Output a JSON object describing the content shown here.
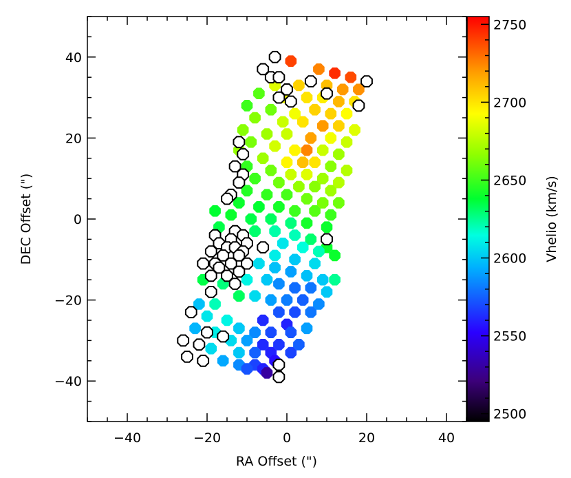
{
  "chart_data": {
    "type": "scatter",
    "xlabel": "RA Offset (\")",
    "ylabel": "DEC Offset (\")",
    "xlim": [
      -50,
      45
    ],
    "ylim": [
      -50,
      50
    ],
    "xticks": [
      "-40",
      "-20",
      "0",
      "20",
      "40"
    ],
    "yticks": [
      "-40",
      "-20",
      "0",
      "20",
      "40"
    ],
    "grid": false,
    "colorbar": {
      "label": "Vhelio (km/s)",
      "min": 2495,
      "max": 2755,
      "ticks": [
        "2500",
        "2550",
        "2600",
        "2650",
        "2700",
        "2750"
      ]
    },
    "filled_points": [
      {
        "x": 1,
        "y": 39,
        "v": 2740
      },
      {
        "x": 8,
        "y": 37,
        "v": 2725
      },
      {
        "x": 12,
        "y": 36,
        "v": 2745
      },
      {
        "x": 16,
        "y": 35,
        "v": 2738
      },
      {
        "x": -3,
        "y": 33,
        "v": 2685
      },
      {
        "x": 3,
        "y": 33,
        "v": 2705
      },
      {
        "x": 10,
        "y": 33,
        "v": 2710
      },
      {
        "x": 14,
        "y": 32,
        "v": 2720
      },
      {
        "x": 18,
        "y": 32,
        "v": 2722
      },
      {
        "x": -7,
        "y": 31,
        "v": 2655
      },
      {
        "x": -1,
        "y": 30,
        "v": 2690
      },
      {
        "x": 5,
        "y": 30,
        "v": 2700
      },
      {
        "x": 9,
        "y": 30,
        "v": 2697
      },
      {
        "x": 13,
        "y": 29,
        "v": 2712
      },
      {
        "x": 17,
        "y": 29,
        "v": 2700
      },
      {
        "x": -10,
        "y": 28,
        "v": 2650
      },
      {
        "x": -4,
        "y": 27,
        "v": 2660
      },
      {
        "x": 2,
        "y": 26,
        "v": 2690
      },
      {
        "x": 7,
        "y": 27,
        "v": 2705
      },
      {
        "x": 11,
        "y": 26,
        "v": 2705
      },
      {
        "x": 15,
        "y": 26,
        "v": 2693
      },
      {
        "x": -8,
        "y": 25,
        "v": 2665
      },
      {
        "x": -1,
        "y": 24,
        "v": 2680
      },
      {
        "x": 4,
        "y": 24,
        "v": 2700
      },
      {
        "x": 9,
        "y": 23,
        "v": 2720
      },
      {
        "x": 13,
        "y": 23,
        "v": 2705
      },
      {
        "x": 17,
        "y": 22,
        "v": 2685
      },
      {
        "x": -11,
        "y": 22,
        "v": 2665
      },
      {
        "x": -5,
        "y": 21,
        "v": 2670
      },
      {
        "x": 0,
        "y": 21,
        "v": 2680
      },
      {
        "x": 6,
        "y": 20,
        "v": 2718
      },
      {
        "x": 11,
        "y": 20,
        "v": 2690
      },
      {
        "x": 15,
        "y": 19,
        "v": 2680
      },
      {
        "x": -9,
        "y": 19,
        "v": 2662
      },
      {
        "x": -3,
        "y": 18,
        "v": 2682
      },
      {
        "x": 2,
        "y": 17,
        "v": 2695
      },
      {
        "x": 5,
        "y": 17,
        "v": 2725
      },
      {
        "x": 9,
        "y": 17,
        "v": 2680
      },
      {
        "x": 13,
        "y": 16,
        "v": 2670
      },
      {
        "x": -12,
        "y": 17,
        "v": 2668
      },
      {
        "x": -6,
        "y": 15,
        "v": 2670
      },
      {
        "x": 0,
        "y": 14,
        "v": 2695
      },
      {
        "x": 4,
        "y": 14,
        "v": 2710
      },
      {
        "x": 7,
        "y": 14,
        "v": 2700
      },
      {
        "x": 11,
        "y": 13,
        "v": 2665
      },
      {
        "x": 15,
        "y": 12,
        "v": 2675
      },
      {
        "x": -10,
        "y": 13,
        "v": 2648
      },
      {
        "x": -4,
        "y": 12,
        "v": 2660
      },
      {
        "x": 1,
        "y": 11,
        "v": 2680
      },
      {
        "x": 5,
        "y": 11,
        "v": 2685
      },
      {
        "x": 9,
        "y": 10,
        "v": 2670
      },
      {
        "x": 13,
        "y": 9,
        "v": 2675
      },
      {
        "x": -8,
        "y": 10,
        "v": 2650
      },
      {
        "x": -2,
        "y": 9,
        "v": 2660
      },
      {
        "x": 3,
        "y": 8,
        "v": 2668
      },
      {
        "x": 7,
        "y": 8,
        "v": 2665
      },
      {
        "x": 11,
        "y": 7,
        "v": 2670
      },
      {
        "x": -10,
        "y": 7,
        "v": 2645
      },
      {
        "x": -5,
        "y": 6,
        "v": 2648
      },
      {
        "x": 0,
        "y": 6,
        "v": 2652
      },
      {
        "x": 5,
        "y": 5,
        "v": 2660
      },
      {
        "x": 9,
        "y": 4,
        "v": 2662
      },
      {
        "x": 13,
        "y": 4,
        "v": 2660
      },
      {
        "x": -12,
        "y": 4,
        "v": 2640
      },
      {
        "x": -7,
        "y": 3,
        "v": 2638
      },
      {
        "x": -2,
        "y": 3,
        "v": 2642
      },
      {
        "x": 2,
        "y": 2,
        "v": 2650
      },
      {
        "x": 7,
        "y": 2,
        "v": 2655
      },
      {
        "x": 11,
        "y": 1,
        "v": 2650
      },
      {
        "x": -18,
        "y": 2,
        "v": 2638
      },
      {
        "x": -14,
        "y": 1,
        "v": 2640
      },
      {
        "x": -9,
        "y": 0,
        "v": 2635
      },
      {
        "x": -4,
        "y": 0,
        "v": 2632
      },
      {
        "x": 1,
        "y": -1,
        "v": 2628
      },
      {
        "x": 5,
        "y": -1,
        "v": 2642
      },
      {
        "x": 10,
        "y": -2,
        "v": 2640
      },
      {
        "x": -17,
        "y": -2,
        "v": 2635
      },
      {
        "x": -8,
        "y": -3,
        "v": 2630
      },
      {
        "x": -3,
        "y": -3,
        "v": 2622
      },
      {
        "x": 2,
        "y": -4,
        "v": 2620
      },
      {
        "x": 6,
        "y": -5,
        "v": 2630
      },
      {
        "x": 10,
        "y": -7,
        "v": 2640
      },
      {
        "x": -1,
        "y": -6,
        "v": 2608
      },
      {
        "x": 4,
        "y": -7,
        "v": 2615
      },
      {
        "x": 8,
        "y": -8,
        "v": 2620
      },
      {
        "x": 12,
        "y": -9,
        "v": 2640
      },
      {
        "x": -3,
        "y": -9,
        "v": 2610
      },
      {
        "x": 2,
        "y": -10,
        "v": 2600
      },
      {
        "x": 7,
        "y": -11,
        "v": 2605
      },
      {
        "x": -7,
        "y": -11,
        "v": 2605
      },
      {
        "x": -3,
        "y": -12,
        "v": 2598
      },
      {
        "x": 1,
        "y": -13,
        "v": 2590
      },
      {
        "x": 5,
        "y": -14,
        "v": 2598
      },
      {
        "x": 9,
        "y": -15,
        "v": 2600
      },
      {
        "x": 12,
        "y": -15,
        "v": 2625
      },
      {
        "x": -21,
        "y": -15,
        "v": 2635
      },
      {
        "x": -16,
        "y": -16,
        "v": 2628
      },
      {
        "x": -10,
        "y": -15,
        "v": 2612
      },
      {
        "x": -5,
        "y": -15,
        "v": 2600
      },
      {
        "x": -2,
        "y": -16,
        "v": 2585
      },
      {
        "x": 2,
        "y": -17,
        "v": 2578
      },
      {
        "x": 6,
        "y": -17,
        "v": 2580
      },
      {
        "x": 10,
        "y": -18,
        "v": 2600
      },
      {
        "x": -12,
        "y": -19,
        "v": 2632
      },
      {
        "x": -8,
        "y": -19,
        "v": 2605
      },
      {
        "x": -4,
        "y": -20,
        "v": 2590
      },
      {
        "x": 0,
        "y": -20,
        "v": 2582
      },
      {
        "x": 4,
        "y": -20,
        "v": 2575
      },
      {
        "x": 8,
        "y": -21,
        "v": 2585
      },
      {
        "x": -22,
        "y": -21,
        "v": 2598
      },
      {
        "x": -18,
        "y": -21,
        "v": 2620
      },
      {
        "x": -2,
        "y": -23,
        "v": 2572
      },
      {
        "x": 2,
        "y": -23,
        "v": 2570
      },
      {
        "x": 6,
        "y": -23,
        "v": 2580
      },
      {
        "x": -20,
        "y": -24,
        "v": 2608
      },
      {
        "x": -15,
        "y": -25,
        "v": 2612
      },
      {
        "x": -6,
        "y": -25,
        "v": 2562
      },
      {
        "x": 0,
        "y": -26,
        "v": 2560
      },
      {
        "x": -23,
        "y": -27,
        "v": 2595
      },
      {
        "x": -18,
        "y": -28,
        "v": 2610
      },
      {
        "x": -12,
        "y": -27,
        "v": 2600
      },
      {
        "x": -8,
        "y": -28,
        "v": 2585
      },
      {
        "x": -4,
        "y": -28,
        "v": 2570
      },
      {
        "x": 1,
        "y": -28,
        "v": 2572
      },
      {
        "x": 5,
        "y": -27,
        "v": 2590
      },
      {
        "x": -14,
        "y": -30,
        "v": 2605
      },
      {
        "x": -10,
        "y": -30,
        "v": 2590
      },
      {
        "x": -6,
        "y": -31,
        "v": 2562
      },
      {
        "x": -2,
        "y": -31,
        "v": 2565
      },
      {
        "x": 3,
        "y": -31,
        "v": 2575
      },
      {
        "x": -19,
        "y": -32,
        "v": 2605
      },
      {
        "x": -12,
        "y": -33,
        "v": 2600
      },
      {
        "x": -8,
        "y": -33,
        "v": 2575
      },
      {
        "x": -4,
        "y": -33,
        "v": 2560
      },
      {
        "x": 1,
        "y": -33,
        "v": 2568
      },
      {
        "x": -16,
        "y": -35,
        "v": 2592
      },
      {
        "x": -12,
        "y": -36,
        "v": 2585
      },
      {
        "x": -8,
        "y": -36,
        "v": 2568
      },
      {
        "x": -3,
        "y": -35,
        "v": 2555
      },
      {
        "x": -10,
        "y": -37,
        "v": 2572
      },
      {
        "x": -6,
        "y": -37,
        "v": 2560
      },
      {
        "x": -5,
        "y": -38,
        "v": 2530
      }
    ],
    "open_points": [
      {
        "x": -3,
        "y": 40
      },
      {
        "x": -6,
        "y": 37
      },
      {
        "x": -4,
        "y": 35
      },
      {
        "x": -2,
        "y": 35
      },
      {
        "x": 0,
        "y": 32
      },
      {
        "x": -2,
        "y": 30
      },
      {
        "x": 6,
        "y": 34
      },
      {
        "x": 10,
        "y": 31
      },
      {
        "x": 20,
        "y": 34
      },
      {
        "x": 18,
        "y": 28
      },
      {
        "x": 1,
        "y": 29
      },
      {
        "x": -12,
        "y": 19
      },
      {
        "x": -11,
        "y": 16
      },
      {
        "x": -13,
        "y": 13
      },
      {
        "x": -11,
        "y": 11
      },
      {
        "x": -12,
        "y": 9
      },
      {
        "x": -14,
        "y": 6
      },
      {
        "x": -15,
        "y": 5
      },
      {
        "x": -18,
        "y": -4
      },
      {
        "x": -13,
        "y": -3
      },
      {
        "x": -11,
        "y": -4
      },
      {
        "x": -14,
        "y": -5
      },
      {
        "x": -10,
        "y": -6
      },
      {
        "x": -17,
        "y": -6
      },
      {
        "x": -15,
        "y": -7
      },
      {
        "x": -13,
        "y": -7
      },
      {
        "x": -11,
        "y": -8
      },
      {
        "x": -19,
        "y": -8
      },
      {
        "x": -16,
        "y": -9
      },
      {
        "x": -12,
        "y": -9
      },
      {
        "x": -18,
        "y": -11
      },
      {
        "x": -14,
        "y": -11
      },
      {
        "x": -10,
        "y": -11
      },
      {
        "x": -21,
        "y": -11
      },
      {
        "x": -17,
        "y": -12
      },
      {
        "x": -12,
        "y": -13
      },
      {
        "x": -19,
        "y": -14
      },
      {
        "x": -15,
        "y": -14
      },
      {
        "x": -13,
        "y": -16
      },
      {
        "x": -19,
        "y": -18
      },
      {
        "x": -6,
        "y": -7
      },
      {
        "x": 10,
        "y": -5
      },
      {
        "x": -24,
        "y": -23
      },
      {
        "x": -20,
        "y": -28
      },
      {
        "x": -26,
        "y": -30
      },
      {
        "x": -22,
        "y": -31
      },
      {
        "x": -16,
        "y": -29
      },
      {
        "x": -25,
        "y": -34
      },
      {
        "x": -21,
        "y": -35
      },
      {
        "x": -2,
        "y": -36
      },
      {
        "x": -2,
        "y": -39
      }
    ]
  }
}
